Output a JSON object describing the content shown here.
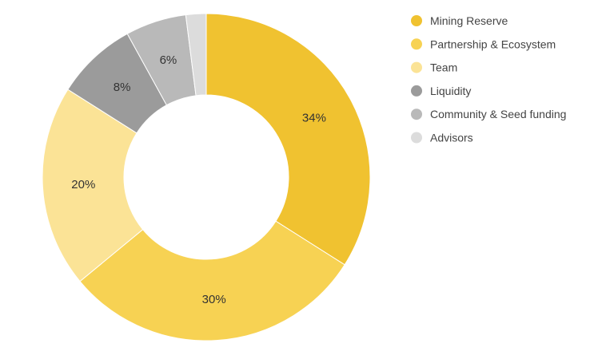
{
  "chart_data": {
    "type": "pie",
    "donut": true,
    "labels": [
      "Mining Reserve",
      "Partnership & Ecosystem",
      "Team",
      "Liquidity",
      "Community & Seed funding",
      "Advisors"
    ],
    "values": [
      34,
      30,
      20,
      8,
      6,
      2
    ],
    "value_labels": [
      "34%",
      "30%",
      "20%",
      "8%",
      "6%",
      ""
    ],
    "colors": [
      "#F0C230",
      "#F7D253",
      "#FBE396",
      "#9B9B9B",
      "#B9B9B9",
      "#DCDCDC"
    ],
    "legend": "right",
    "title": ""
  }
}
